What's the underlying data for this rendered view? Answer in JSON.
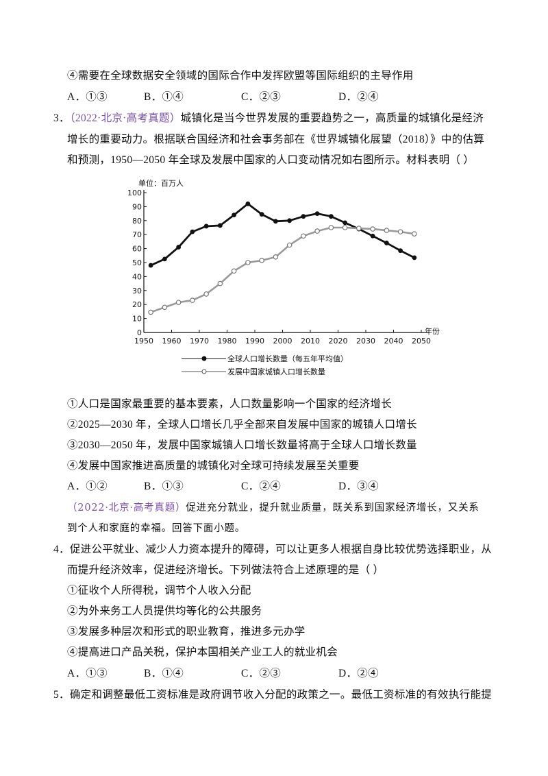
{
  "q2": {
    "option4": "④需要在全球数据安全领域的国际合作中发挥欧盟等国际组织的主导作用",
    "choices": [
      "A．①③",
      "B．①④",
      "C．②③",
      "D．②④"
    ]
  },
  "q3": {
    "number": "3．",
    "source": "（2022·北京·高考真题）",
    "stem": [
      "城镇化是当今世界发展的重要趋势之一，高质量的城镇化是经济",
      "增长的重要动力。根据联合国经济和社会事务部在《世界城镇化展望（2018）》中的估算",
      "和预测，1950—2050 年全球及发展中国家的人口变动情况如右图所示。材料表明（    ）"
    ],
    "statements": [
      "①人口是国家最重要的基本要素，人口数量影响一个国家的经济增长",
      "②2025—2030 年，全球人口增长几乎全部来自发展中国家的城镇人口增长",
      "③2030—2050 年，发展中国家城镇人口增长数量将高于全球人口增长数量",
      "④发展中国家推进高质量的城镇化对全球可持续发展至关重要"
    ],
    "choices": [
      "A．①②",
      "B．①③",
      "C．②④",
      "D．③④"
    ]
  },
  "material": {
    "source": "（2022·北京·高考真题）",
    "text": [
      "促进充分就业，提升就业质量，既关系到国家经济增长，又关系",
      "到个人和家庭的幸福。回答下面小题。"
    ]
  },
  "q4": {
    "number": "4．",
    "stem": [
      "促进公平就业、减少人力资本提升的障碍，可以让更多人根据自身比较优势选择职业，从",
      "而提升经济效率，促进经济增长。下列做法符合上述原理的是（    ）"
    ],
    "statements": [
      "①征收个人所得税，调节个人收入分配",
      "②为外来务工人员提供均等化的公共服务",
      "③发展多种层次和形式的职业教育，推进多元办学",
      "④提高进口产品关税，保护本国相关产业工人的就业机会"
    ],
    "choices": [
      "A．①③",
      "B．①④",
      "C．②③",
      "D．②④"
    ]
  },
  "q5": {
    "number": "5．",
    "stem": [
      "确定和调整最低工资标准是政府调节收入分配的政策之一。最低工资标准的有效执行能提"
    ]
  },
  "chart_data": {
    "type": "line",
    "y_label": "单位：百万人",
    "x_label": "年份",
    "x": [
      1952.5,
      1957.5,
      1962.5,
      1967.5,
      1972.5,
      1977.5,
      1982.5,
      1987.5,
      1992.5,
      1997.5,
      2002.5,
      2007.5,
      2012.5,
      2017.5,
      2022.5,
      2027.5,
      2032.5,
      2037.5,
      2042.5,
      2047.5
    ],
    "series": [
      {
        "name": "全球人口增长数量（每五年平均值）",
        "color": "#111111",
        "values": [
          48,
          52.5,
          61,
          72,
          76,
          76.5,
          84,
          92,
          84.5,
          79.5,
          80,
          83,
          85,
          83,
          78.5,
          74,
          69,
          64,
          58.5,
          53.5
        ]
      },
      {
        "name": "发展中国家城镇人口增长数量",
        "color": "#999999",
        "values": [
          14.5,
          18,
          21.5,
          23,
          27.5,
          35,
          44,
          50,
          51.5,
          54,
          62.5,
          69,
          72.5,
          75,
          75,
          74.5,
          74,
          73,
          72,
          70.5
        ]
      }
    ],
    "xlim": [
      1950,
      2050
    ],
    "ylim": [
      0,
      100
    ],
    "xticks": [
      1950,
      1960,
      1970,
      1980,
      1990,
      2000,
      2010,
      2020,
      2030,
      2040,
      2050
    ],
    "yticks": [
      0,
      10,
      20,
      30,
      40,
      50,
      60,
      70,
      80,
      90,
      100
    ]
  }
}
